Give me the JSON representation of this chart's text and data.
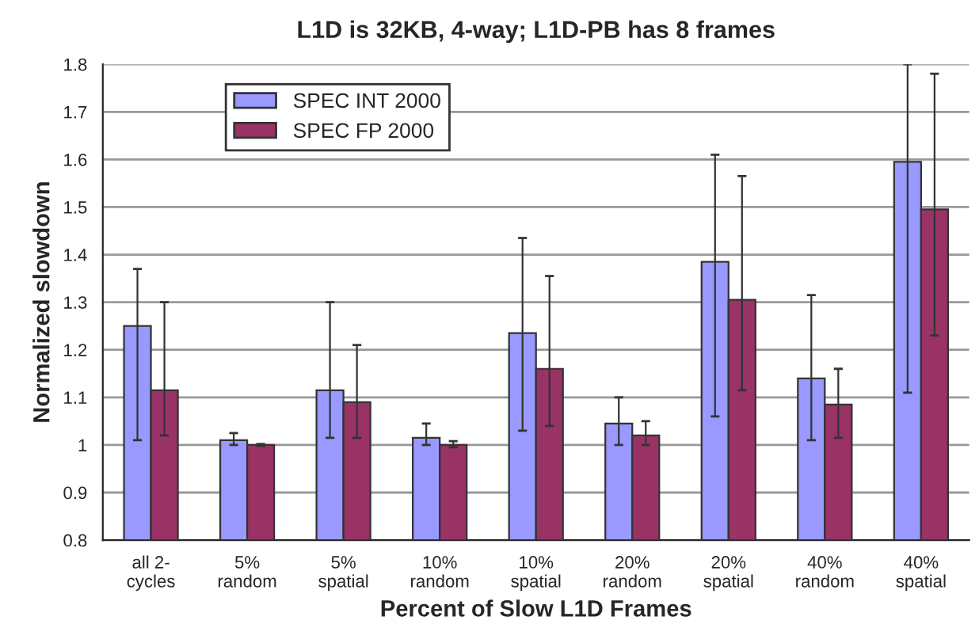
{
  "chart_data": {
    "type": "bar",
    "title": "L1D is 32KB, 4-way; L1D-PB has 8 frames",
    "xlabel": "Percent of Slow L1D Frames",
    "ylabel": "Normalized slowdown",
    "categories": [
      "all 2-\ncycles",
      "5%\nrandom",
      "5%\nspatial",
      "10%\nrandom",
      "10%\nspatial",
      "20%\nrandom",
      "20%\nspatial",
      "40%\nrandom",
      "40%\nspatial"
    ],
    "series": [
      {
        "name": "SPEC INT 2000",
        "color": "#9999ff",
        "values": [
          1.25,
          1.01,
          1.115,
          1.015,
          1.235,
          1.045,
          1.385,
          1.14,
          1.595
        ],
        "errors": [
          [
            1.01,
            1.37
          ],
          [
            1.0,
            1.025
          ],
          [
            1.015,
            1.3
          ],
          [
            1.0,
            1.045
          ],
          [
            1.03,
            1.435
          ],
          [
            1.0,
            1.1
          ],
          [
            1.06,
            1.61
          ],
          [
            1.01,
            1.315
          ],
          [
            1.11,
            1.8
          ]
        ]
      },
      {
        "name": "SPEC FP 2000",
        "color": "#993366",
        "values": [
          1.115,
          1.0,
          1.09,
          1.0,
          1.16,
          1.02,
          1.305,
          1.085,
          1.495
        ],
        "errors": [
          [
            1.02,
            1.3
          ],
          [
            0.998,
            1.002
          ],
          [
            1.015,
            1.21
          ],
          [
            0.995,
            1.008
          ],
          [
            1.04,
            1.355
          ],
          [
            1.0,
            1.05
          ],
          [
            1.115,
            1.565
          ],
          [
            1.015,
            1.16
          ],
          [
            1.23,
            1.78
          ]
        ]
      }
    ],
    "ylim": [
      0.8,
      1.8
    ],
    "yticks": [
      0.8,
      0.9,
      1,
      1.1,
      1.2,
      1.3,
      1.4,
      1.5,
      1.6,
      1.7,
      1.8
    ],
    "grid": "y",
    "legend": "top left"
  }
}
